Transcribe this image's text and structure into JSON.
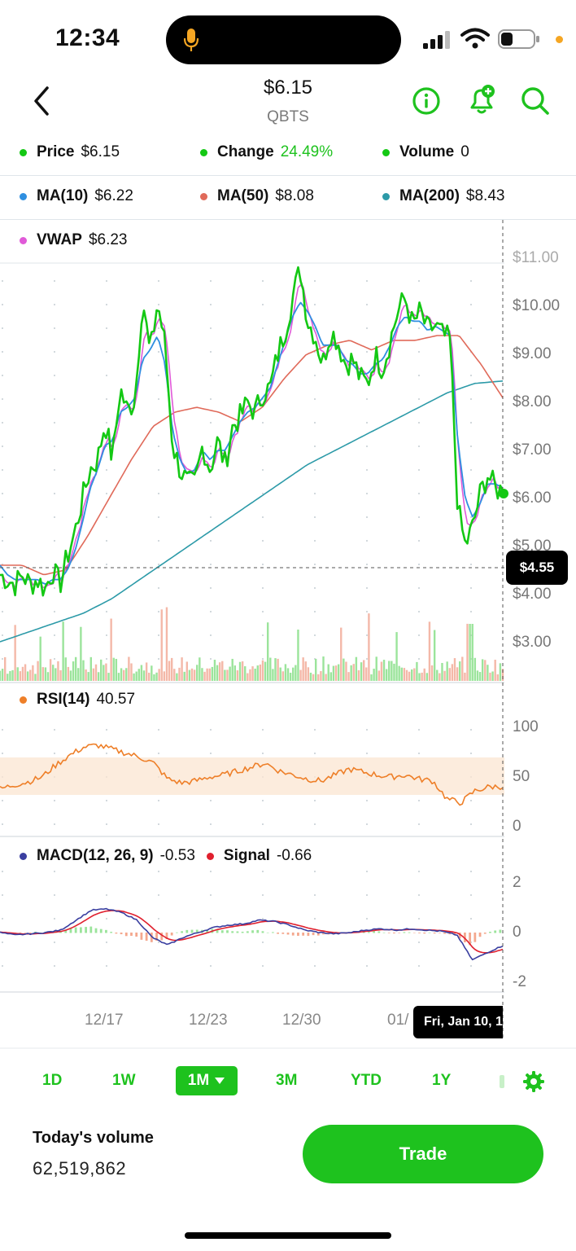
{
  "status_bar": {
    "time": "12:34"
  },
  "header": {
    "price": "$6.15",
    "symbol": "QBTS"
  },
  "legend": {
    "price_label": "Price",
    "price_value": "$6.15",
    "change_label": "Change",
    "change_value": "24.49%",
    "volume_label": "Volume",
    "volume_value": "0",
    "ma10_label": "MA(10)",
    "ma10_value": "$6.22",
    "ma50_label": "MA(50)",
    "ma50_value": "$8.08",
    "ma200_label": "MA(200)",
    "ma200_value": "$8.43",
    "vwap_label": "VWAP",
    "vwap_value": "$6.23"
  },
  "colors": {
    "accent": "#1ec21e",
    "price": "#14c814",
    "ma10": "#2f8fe0",
    "ma50": "#e06a5a",
    "ma200": "#2c9aa8",
    "vwap": "#e05ad8",
    "rsi": "#ee7f28",
    "macd": "#3a3fa0",
    "signal": "#e0202e",
    "vol_up": "#9be49b",
    "vol_down": "#f4b8a8"
  },
  "crosshair_price": "$4.55",
  "rsi": {
    "label": "RSI(14)",
    "value": "40.57",
    "ticks": [
      "100",
      "50",
      "0"
    ]
  },
  "macd": {
    "label": "MACD(12, 26, 9)",
    "value": "-0.53",
    "signal_label": "Signal",
    "signal_value": "-0.66",
    "ticks": [
      "2",
      "0",
      "-2"
    ]
  },
  "x_labels": [
    "12/17",
    "12/23",
    "12/30",
    "01/"
  ],
  "tooltip_date": "Fri, Jan 10, 1",
  "ranges": {
    "r1": "1D",
    "r2": "1W",
    "selected": "1M",
    "r4": "3M",
    "r5": "YTD",
    "r6": "1Y"
  },
  "today_volume_label": "Today's volume",
  "today_volume_value": "62,519,862",
  "trade_label": "Trade",
  "chart_data": {
    "type": "line",
    "price_axis_ticks": [
      "$11.00",
      "$10.00",
      "$9.00",
      "$8.00",
      "$7.00",
      "$6.00",
      "$5.00",
      "$4.00",
      "$3.00"
    ],
    "ylim": [
      3.0,
      11.0
    ],
    "series": [
      {
        "name": "Price",
        "values": [
          4.4,
          4.3,
          4.2,
          4.4,
          4.2,
          4.3,
          4.1,
          4.5,
          4.2,
          4.8,
          5.3,
          6.0,
          6.6,
          6.8,
          7.6,
          6.8,
          8.3,
          7.8,
          8.1,
          10.2,
          9.0,
          10.1,
          9.2,
          7.1,
          6.6,
          6.3,
          6.3,
          7.1,
          6.6,
          7.2,
          6.7,
          7.5,
          7.7,
          8.0,
          7.8,
          8.2,
          8.3,
          9.0,
          9.5,
          10.2,
          10.8,
          9.7,
          9.4,
          8.8,
          9.5,
          9.3,
          8.8,
          8.9,
          8.5,
          8.4,
          9.0,
          8.7,
          9.3,
          9.9,
          10.2,
          9.6,
          9.9,
          9.5,
          9.6,
          9.4,
          9.3,
          5.8,
          5.0,
          5.4,
          6.1,
          6.5,
          6.2,
          6.15
        ]
      },
      {
        "name": "MA(10)",
        "values": [
          4.6,
          4.4,
          4.3,
          4.3,
          4.3,
          4.3,
          4.2,
          4.3,
          4.3,
          4.5,
          4.9,
          5.5,
          6.2,
          6.6,
          7.1,
          7.2,
          7.8,
          7.9,
          8.1,
          8.9,
          9.1,
          9.4,
          8.8,
          7.4,
          6.8,
          6.5,
          6.6,
          7.0,
          6.8,
          7.0,
          7.0,
          7.3,
          7.6,
          7.8,
          7.9,
          8.1,
          8.3,
          8.8,
          9.3,
          9.8,
          10.1,
          9.9,
          9.6,
          9.2,
          9.2,
          9.2,
          8.9,
          8.8,
          8.6,
          8.6,
          8.8,
          8.9,
          9.2,
          9.6,
          9.8,
          9.7,
          9.7,
          9.5,
          9.6,
          9.5,
          9.4,
          7.2,
          6.0,
          5.6,
          5.9,
          6.3,
          6.3,
          6.22
        ]
      }
    ]
  }
}
